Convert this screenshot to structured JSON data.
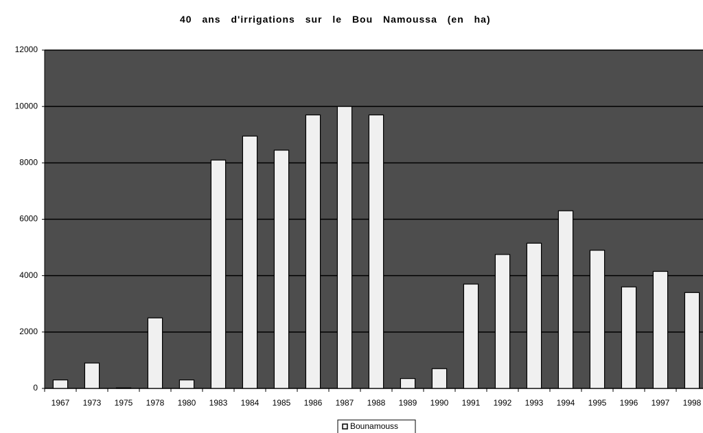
{
  "chart_data": {
    "type": "bar",
    "title": "40 ans d'irrigations sur le Bou Namoussa (en ha)",
    "categories": [
      "1967",
      "1973",
      "1975",
      "1978",
      "1980",
      "1983",
      "1984",
      "1985",
      "1986",
      "1987",
      "1988",
      "1989",
      "1990",
      "1991",
      "1992",
      "1993",
      "1994",
      "1995",
      "1996",
      "1997",
      "1998"
    ],
    "series": [
      {
        "name": "Bounamouss",
        "color": "#f0f0f0",
        "values": [
          300,
          900,
          20,
          2500,
          300,
          8100,
          8950,
          8450,
          9700,
          10000,
          9700,
          350,
          700,
          3700,
          4750,
          5150,
          6300,
          4900,
          3600,
          4150,
          3400
        ]
      }
    ],
    "ylim": [
      0,
      12000
    ],
    "yticks": [
      0,
      2000,
      4000,
      6000,
      8000,
      10000,
      12000
    ],
    "grid": true,
    "plot_background": "#4d4d4d"
  }
}
